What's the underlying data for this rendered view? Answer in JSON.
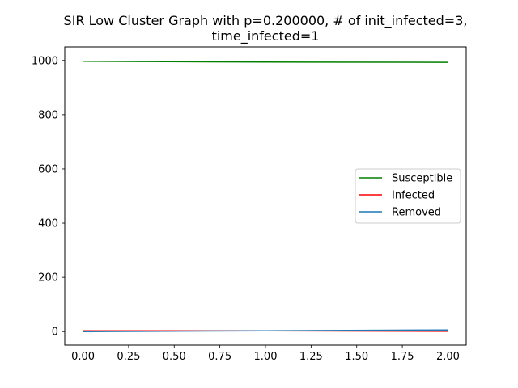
{
  "chart_data": {
    "type": "line",
    "title_lines": [
      "SIR Low Cluster Graph with p=0.200000, # of init_infected=3,",
      "time_infected=1"
    ],
    "xlabel": "",
    "ylabel": "",
    "x": [
      0,
      1,
      2
    ],
    "xlim": [
      -0.1,
      2.1
    ],
    "ylim": [
      -50,
      1050
    ],
    "xticks": [
      0.0,
      0.25,
      0.5,
      0.75,
      1.0,
      1.25,
      1.5,
      1.75,
      2.0
    ],
    "xtick_labels": [
      "0.00",
      "0.25",
      "0.50",
      "0.75",
      "1.00",
      "1.25",
      "1.50",
      "1.75",
      "2.00"
    ],
    "yticks": [
      0,
      200,
      400,
      600,
      800,
      1000
    ],
    "ytick_labels": [
      "0",
      "200",
      "400",
      "600",
      "800",
      "1000"
    ],
    "grid": false,
    "legend_position": "center-right",
    "series": [
      {
        "name": "Susceptible",
        "color": "#008000",
        "values": [
          997,
          994,
          993
        ]
      },
      {
        "name": "Infected",
        "color": "#ff0000",
        "values": [
          3,
          3,
          1
        ]
      },
      {
        "name": "Removed",
        "color": "#1f77b4",
        "values": [
          0,
          3,
          6
        ]
      }
    ]
  }
}
